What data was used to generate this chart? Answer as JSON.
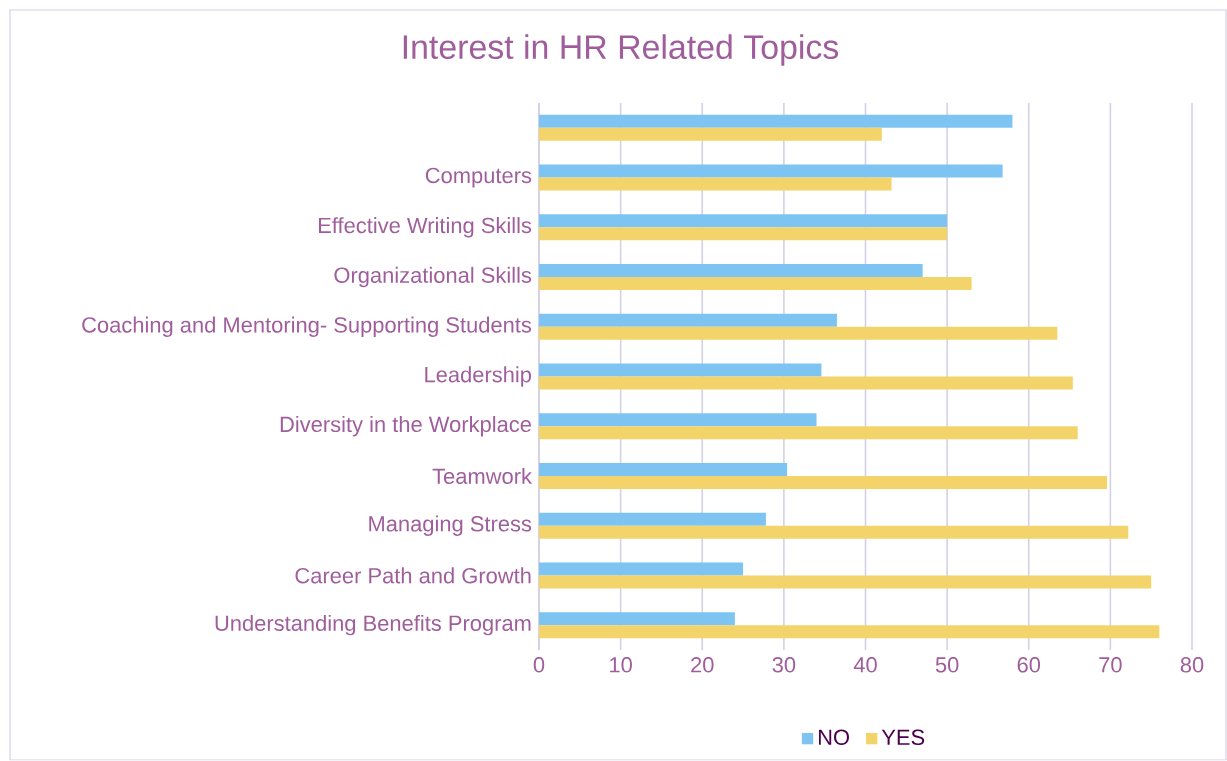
{
  "chart_data": {
    "type": "bar",
    "orientation": "horizontal",
    "title": "Interest in HR Related Topics",
    "categories": [
      null,
      "Computers",
      "Effective Writing Skills",
      "Organizational Skills",
      "Coaching and Mentoring- Supporting Students",
      "Leadership",
      "Diversity in the Workplace",
      "Teamwork",
      "Managing Stress",
      "Career Path and Growth",
      "Understanding Benefits Program"
    ],
    "series": [
      {
        "name": "NO",
        "color": "#7dc4f2",
        "values": [
          58,
          56.8,
          50,
          47,
          36.5,
          34.6,
          34,
          30.4,
          27.8,
          25,
          24
        ]
      },
      {
        "name": "YES",
        "color": "#f2d46b",
        "values": [
          42,
          43.2,
          50,
          53,
          63.5,
          65.4,
          66,
          69.6,
          72.2,
          75,
          76
        ]
      }
    ],
    "xlim": [
      0,
      80
    ],
    "xticks": [
      0,
      10,
      20,
      30,
      40,
      50,
      60,
      70,
      80
    ],
    "grid": "x",
    "legend": "bottom"
  }
}
